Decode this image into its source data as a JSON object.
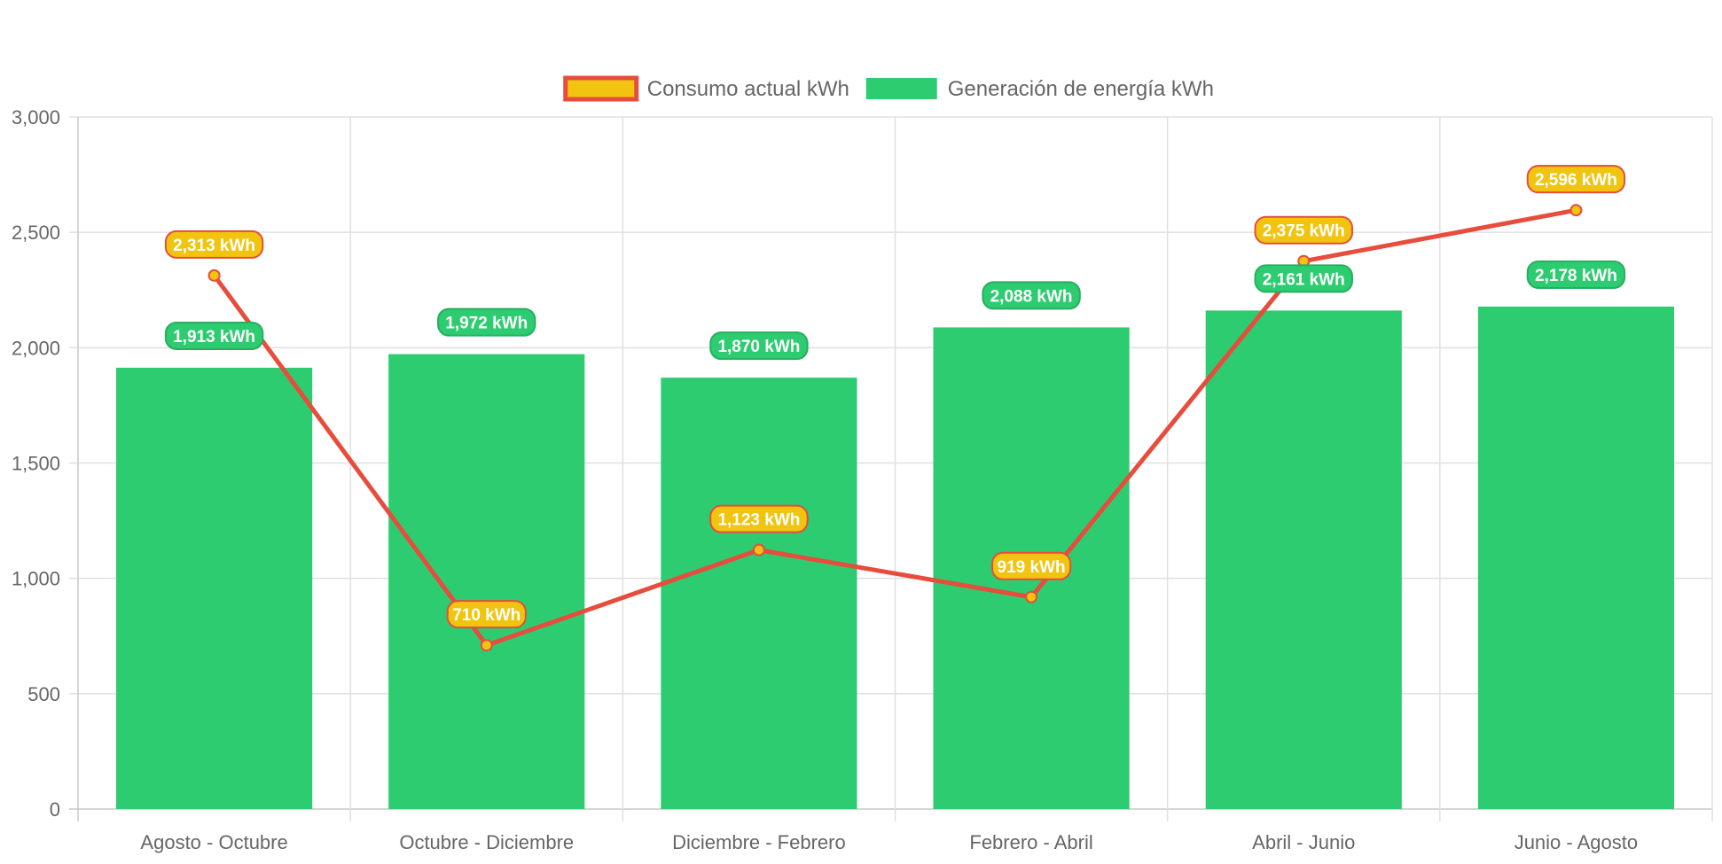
{
  "chart_data": {
    "type": "bar",
    "categories": [
      "Agosto - Octubre",
      "Octubre - Diciembre",
      "Diciembre - Febrero",
      "Febrero - Abril",
      "Abril - Junio",
      "Junio - Agosto"
    ],
    "series": [
      {
        "name": "Consumo actual kWh",
        "type": "line",
        "values": [
          2313,
          710,
          1123,
          919,
          2375,
          2596
        ],
        "labels": [
          "2,313 kWh",
          "710 kWh",
          "1,123 kWh",
          "919 kWh",
          "2,375 kWh",
          "2,596 kWh"
        ],
        "color": "#e74c3c",
        "fill_color": "#f1c40f"
      },
      {
        "name": "Generación de energía kWh",
        "type": "bar",
        "values": [
          1913,
          1972,
          1870,
          2088,
          2161,
          2178
        ],
        "labels": [
          "1,913 kWh",
          "1,972 kWh",
          "1,870 kWh",
          "2,088 kWh",
          "2,161 kWh",
          "2,178 kWh"
        ],
        "color": "#2ecc71"
      }
    ],
    "ylim": [
      0,
      3000
    ],
    "yticks": [
      0,
      500,
      1000,
      1500,
      2000,
      2500,
      3000
    ],
    "ytick_labels": [
      "0",
      "500",
      "1,000",
      "1,500",
      "2,000",
      "2,500",
      "3,000"
    ],
    "grid": true,
    "legend_position": "top"
  }
}
